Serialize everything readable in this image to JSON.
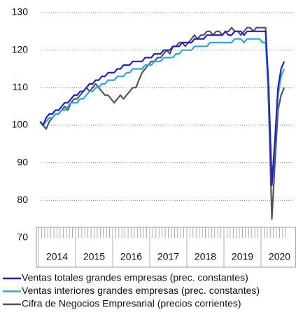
{
  "chart_data": {
    "type": "line",
    "categories": [
      "2014",
      null,
      null,
      null,
      null,
      null,
      null,
      null,
      null,
      null,
      null,
      null,
      "2015",
      null,
      null,
      null,
      null,
      null,
      null,
      null,
      null,
      null,
      null,
      null,
      "2016",
      null,
      null,
      null,
      null,
      null,
      null,
      null,
      null,
      null,
      null,
      null,
      "2017",
      null,
      null,
      null,
      null,
      null,
      null,
      null,
      null,
      null,
      null,
      null,
      "2018",
      null,
      null,
      null,
      null,
      null,
      null,
      null,
      null,
      null,
      null,
      null,
      "2019",
      null,
      null,
      null,
      null,
      null,
      null,
      null,
      null,
      null,
      null,
      null,
      "2020",
      null,
      null,
      null,
      null,
      null,
      null,
      null
    ],
    "series": [
      {
        "name": "Ventas totales grandes empresas (prec. constantes)",
        "color": "#1f1fd6",
        "values": [
          101,
          100,
          102,
          103,
          103,
          104,
          104,
          105,
          106,
          106,
          107,
          108,
          108,
          109,
          109,
          110,
          111,
          111,
          112,
          112,
          113,
          113,
          114,
          114,
          114,
          115,
          115,
          116,
          116,
          116,
          117,
          117,
          117,
          117,
          118,
          118,
          118,
          119,
          119,
          119,
          120,
          120,
          120,
          121,
          121,
          121,
          122,
          122,
          122,
          122,
          123,
          123,
          123,
          123,
          124,
          124,
          124,
          124,
          124,
          124,
          125,
          124,
          124,
          125,
          125,
          125,
          124,
          125,
          125,
          125,
          125,
          125,
          125,
          125,
          110,
          84,
          96,
          110,
          115,
          117
        ]
      },
      {
        "name": "Ventas interiores grandes empresas (prec. constantes)",
        "color": "#29a8e0",
        "values": [
          101,
          100,
          101,
          102,
          102,
          103,
          103,
          104,
          104,
          105,
          106,
          106,
          106,
          107,
          107,
          108,
          109,
          109,
          110,
          110,
          111,
          111,
          112,
          112,
          112,
          113,
          113,
          113,
          114,
          114,
          115,
          115,
          115,
          115,
          116,
          116,
          116,
          117,
          117,
          117,
          118,
          118,
          118,
          118,
          119,
          119,
          120,
          120,
          120,
          120,
          121,
          121,
          121,
          121,
          121,
          122,
          122,
          122,
          122,
          122,
          122,
          122,
          122,
          123,
          123,
          123,
          122,
          123,
          123,
          123,
          123,
          123,
          122,
          122,
          108,
          85,
          95,
          108,
          113,
          115
        ]
      },
      {
        "name": "Cifra de Negocios Empresarial (precios corrientes)",
        "color": "#555555",
        "values": [
          101,
          100,
          99,
          101,
          102,
          103,
          103,
          104,
          105,
          104,
          106,
          107,
          107,
          108,
          109,
          110,
          109,
          110,
          111,
          110,
          109,
          108,
          108,
          107,
          106,
          107,
          108,
          107,
          108,
          109,
          110,
          110,
          112,
          114,
          115,
          116,
          117,
          117,
          118,
          118,
          119,
          120,
          119,
          121,
          121,
          122,
          122,
          121,
          122,
          123,
          124,
          123,
          124,
          124,
          125,
          125,
          124,
          125,
          125,
          124,
          125,
          125,
          126,
          125,
          125,
          124,
          125,
          126,
          126,
          125,
          126,
          126,
          126,
          126,
          105,
          75,
          90,
          104,
          108,
          110
        ]
      }
    ],
    "ylim": [
      70,
      130
    ],
    "yticks": [
      70,
      80,
      90,
      100,
      110,
      120,
      130
    ],
    "grid": true
  }
}
